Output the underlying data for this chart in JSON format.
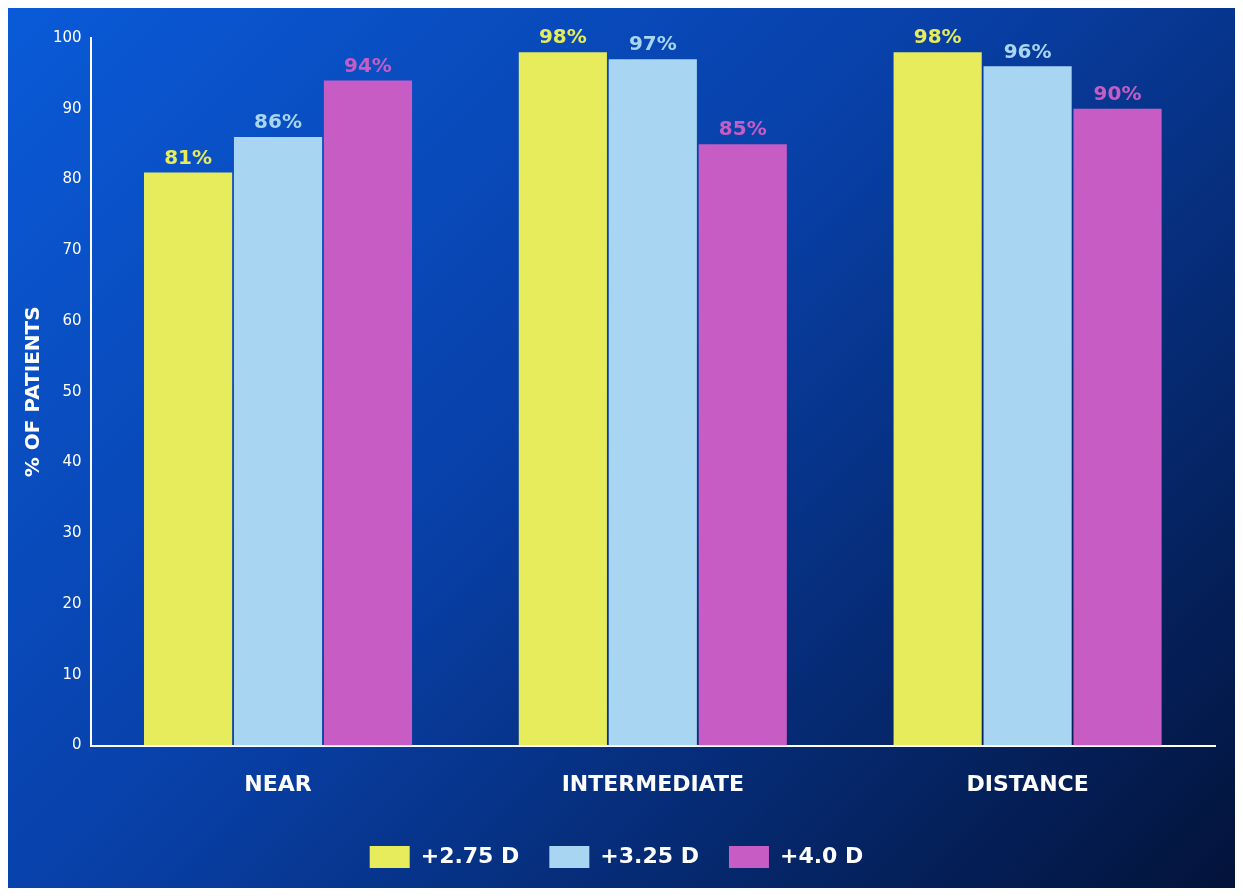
{
  "chart_data": {
    "type": "bar",
    "ylabel": "% OF PATIENTS",
    "categories": [
      "NEAR",
      "INTERMEDIATE",
      "DISTANCE"
    ],
    "series": [
      {
        "name": "+2.75 D",
        "color": "#e6ec5c",
        "values": [
          81,
          98,
          98
        ],
        "value_labels": [
          "81%",
          "98%",
          "98%"
        ]
      },
      {
        "name": "+3.25 D",
        "color": "#a8d6f2",
        "values": [
          86,
          97,
          96
        ],
        "value_labels": [
          "86%",
          "97%",
          "96%"
        ]
      },
      {
        "name": "+4.0 D",
        "color": "#c65cc4",
        "values": [
          94,
          85,
          90
        ],
        "value_labels": [
          "94%",
          "85%",
          "90%"
        ]
      }
    ],
    "ylim": [
      0,
      100
    ],
    "yticks": [
      0,
      10,
      20,
      30,
      40,
      50,
      60,
      70,
      80,
      90,
      100
    ],
    "grid": false,
    "legend": "bottom"
  }
}
